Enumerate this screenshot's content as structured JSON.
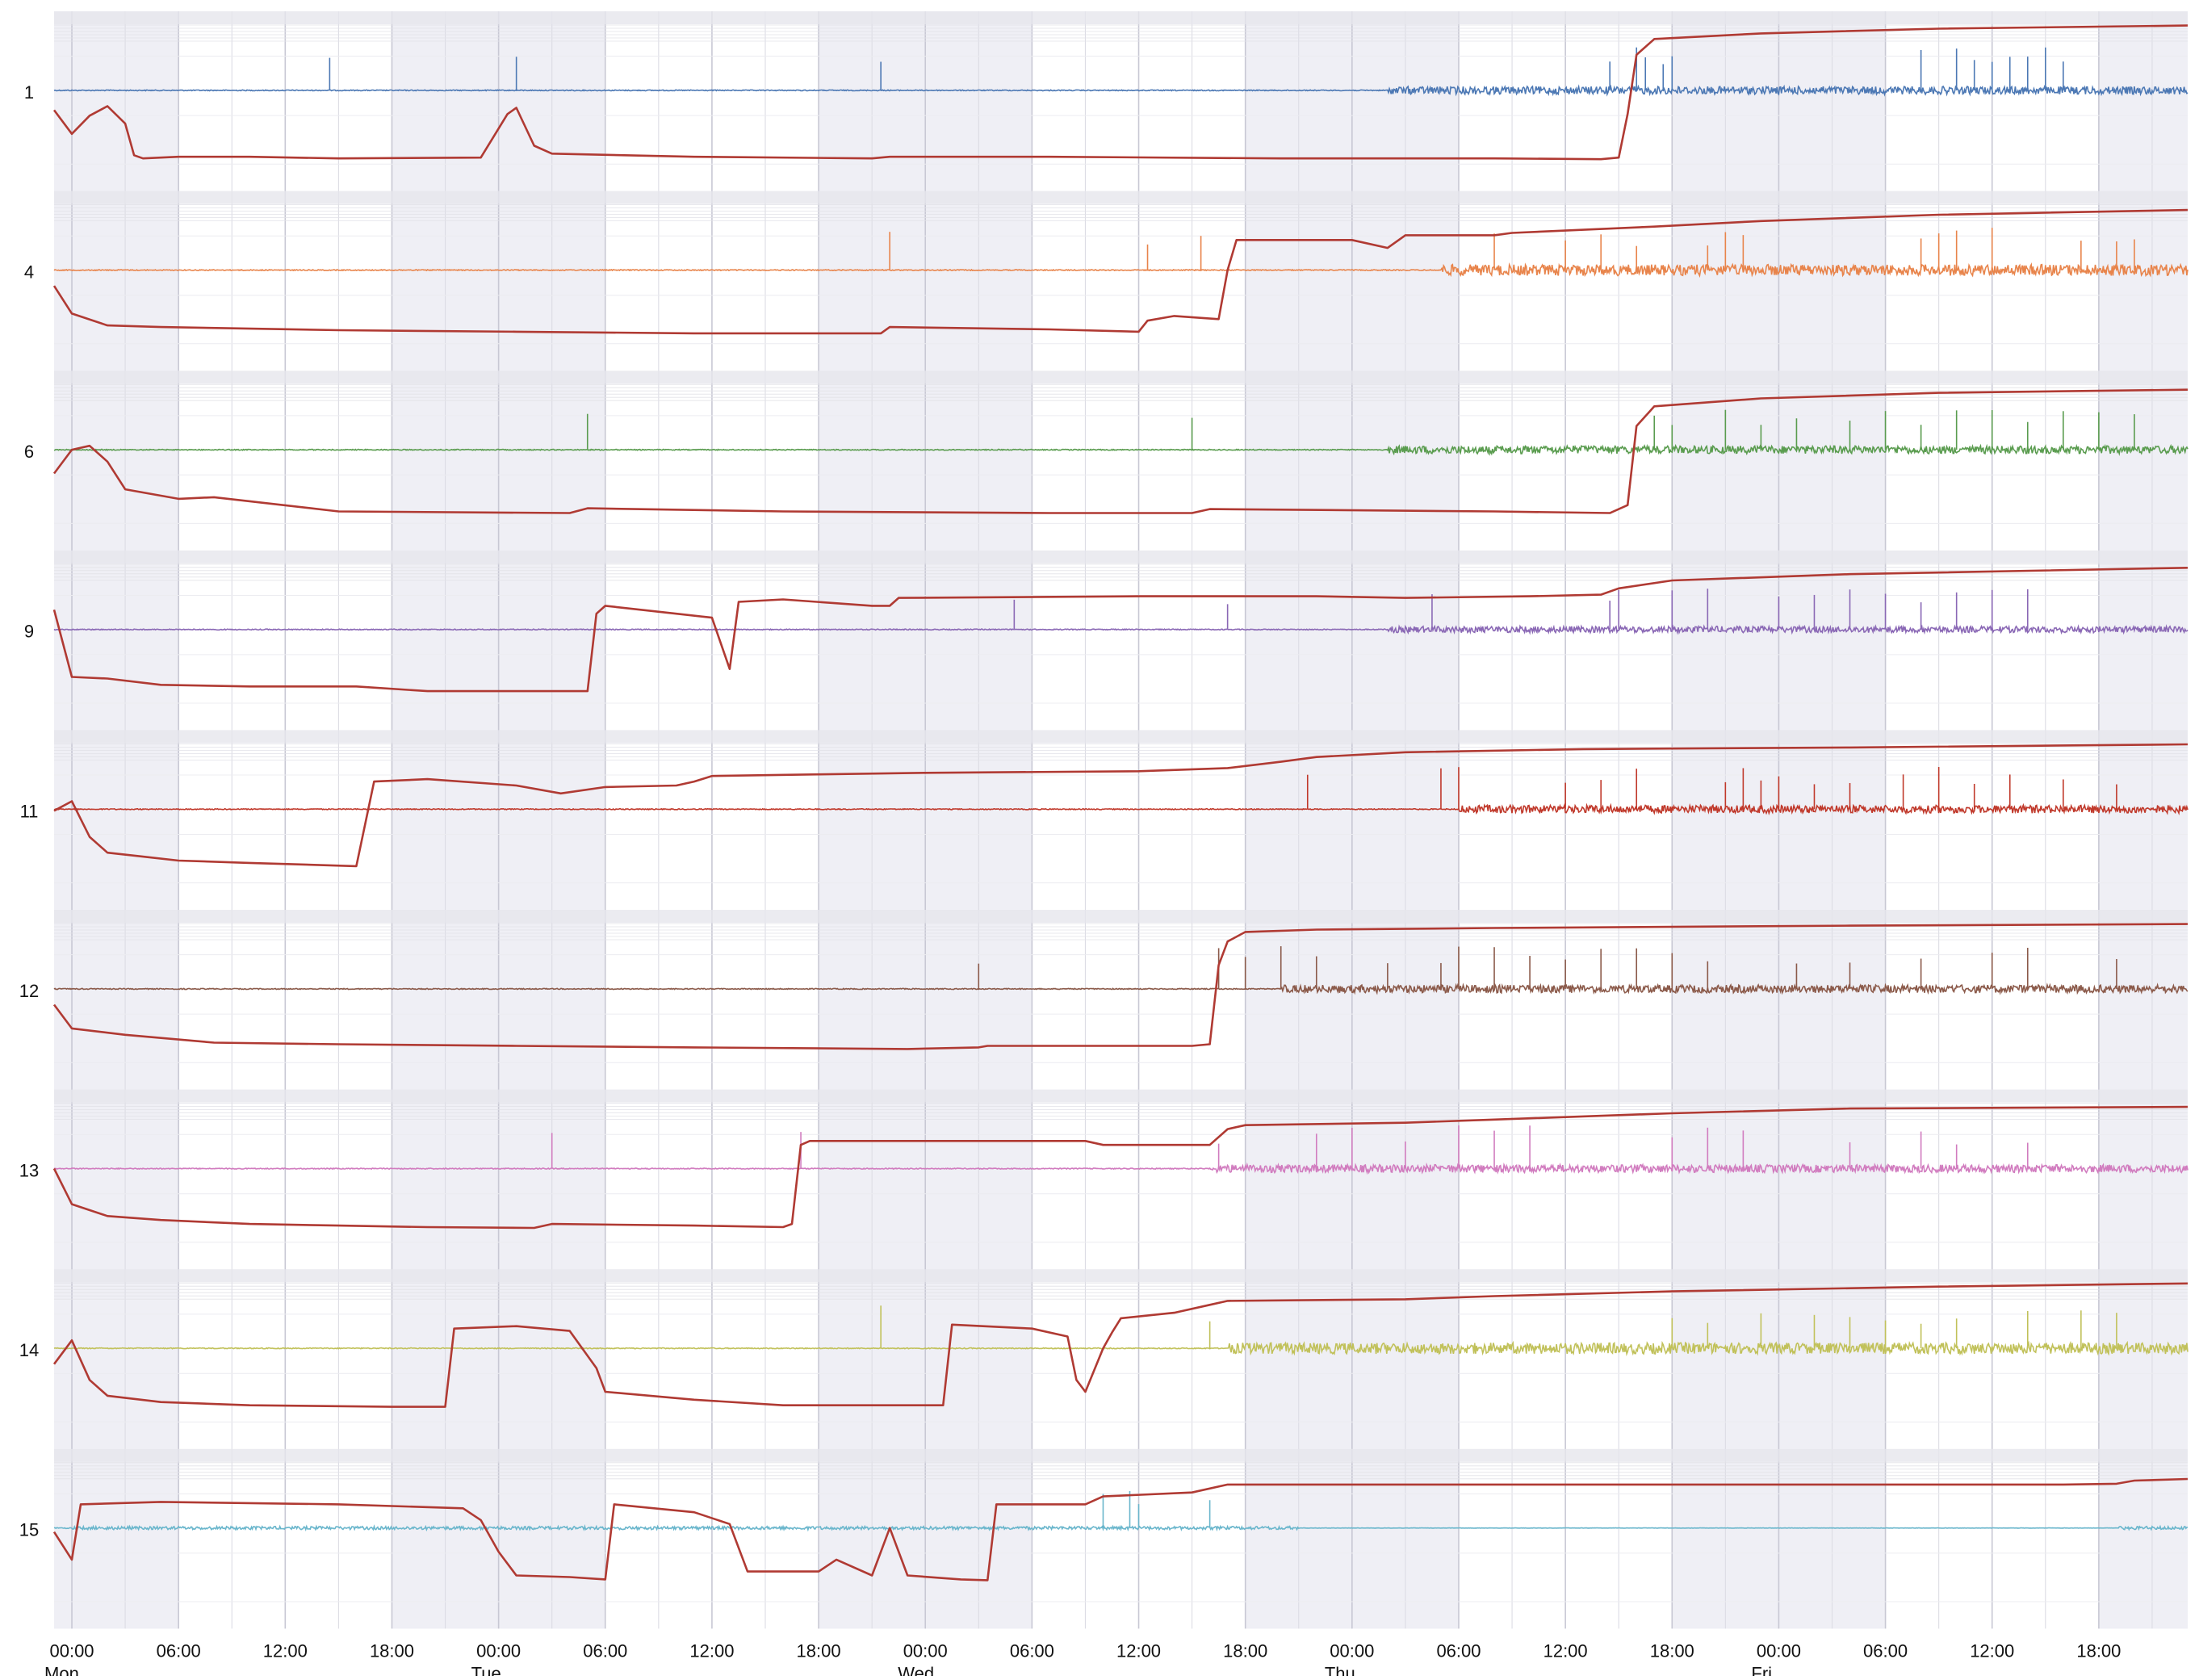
{
  "chart_data": {
    "type": "line",
    "title": "",
    "xlabel": "",
    "ylabel": "",
    "x_unit": "hours since Mon 00:00",
    "xlim": [
      -1,
      119
    ],
    "shaded_periods": [
      [
        -1,
        6
      ],
      [
        18,
        30
      ],
      [
        42,
        54
      ],
      [
        66,
        78
      ],
      [
        90,
        102
      ],
      [
        114,
        119
      ]
    ],
    "vertical_lines_every_hours": 3,
    "x_tick_labels": [
      {
        "x": 0,
        "label": "00:00"
      },
      {
        "x": 6,
        "label": "06:00"
      },
      {
        "x": 12,
        "label": "12:00"
      },
      {
        "x": 18,
        "label": "18:00"
      },
      {
        "x": 24,
        "label": "00:00"
      },
      {
        "x": 30,
        "label": "06:00"
      },
      {
        "x": 36,
        "label": "12:00"
      },
      {
        "x": 42,
        "label": "18:00"
      },
      {
        "x": 48,
        "label": "00:00"
      },
      {
        "x": 54,
        "label": "06:00"
      },
      {
        "x": 60,
        "label": "12:00"
      },
      {
        "x": 66,
        "label": "18:00"
      },
      {
        "x": 72,
        "label": "00:00"
      },
      {
        "x": 78,
        "label": "06:00"
      },
      {
        "x": 84,
        "label": "12:00"
      },
      {
        "x": 90,
        "label": "18:00"
      },
      {
        "x": 96,
        "label": "00:00"
      },
      {
        "x": 102,
        "label": "06:00"
      },
      {
        "x": 108,
        "label": "12:00"
      },
      {
        "x": 114,
        "label": "18:00"
      }
    ],
    "day_labels": [
      {
        "x": 0,
        "label": "Mon"
      },
      {
        "x": 24,
        "label": "Tue"
      },
      {
        "x": 48,
        "label": "Wed"
      },
      {
        "x": 72,
        "label": "Thu"
      },
      {
        "x": 96,
        "label": "Fri"
      }
    ],
    "cumulative_line_color": "#b03a33",
    "panels": [
      {
        "label": "1",
        "color": "#4c78b4",
        "cumulative": [
          [
            -1,
            0.25
          ],
          [
            0,
            0.55
          ],
          [
            1,
            0.32
          ],
          [
            2,
            0.2
          ],
          [
            3,
            0.42
          ],
          [
            3.5,
            0.82
          ],
          [
            4,
            0.86
          ],
          [
            5,
            0.85
          ],
          [
            6,
            0.84
          ],
          [
            10,
            0.84
          ],
          [
            15,
            0.86
          ],
          [
            23,
            0.85
          ],
          [
            24.5,
            0.3
          ],
          [
            25,
            0.22
          ],
          [
            26,
            0.7
          ],
          [
            27,
            0.8
          ],
          [
            35,
            0.84
          ],
          [
            45,
            0.86
          ],
          [
            46,
            0.84
          ],
          [
            55,
            0.84
          ],
          [
            68,
            0.86
          ],
          [
            80,
            0.86
          ],
          [
            86,
            0.87
          ],
          [
            87,
            0.85
          ],
          [
            87.5,
            0.3
          ],
          [
            88,
            -0.45
          ],
          [
            89,
            -0.65
          ],
          [
            95,
            -0.72
          ],
          [
            105,
            -0.78
          ],
          [
            119,
            -0.82
          ]
        ],
        "noise_start": 74,
        "noise_amp": 0.05,
        "spikes": [
          14.5,
          25,
          45.5,
          86.5,
          88,
          88.5,
          89.5,
          90,
          104,
          106,
          107,
          108,
          109,
          110,
          111,
          112
        ]
      },
      {
        "label": "4",
        "color": "#e8844b",
        "cumulative": [
          [
            -1,
            0.2
          ],
          [
            0,
            0.55
          ],
          [
            2,
            0.7
          ],
          [
            5,
            0.72
          ],
          [
            15,
            0.76
          ],
          [
            25,
            0.78
          ],
          [
            35,
            0.8
          ],
          [
            45.5,
            0.8
          ],
          [
            46,
            0.72
          ],
          [
            55,
            0.75
          ],
          [
            60,
            0.78
          ],
          [
            60.5,
            0.64
          ],
          [
            62,
            0.58
          ],
          [
            64.5,
            0.62
          ],
          [
            65,
            0.0
          ],
          [
            65.5,
            -0.38
          ],
          [
            72,
            -0.38
          ],
          [
            74,
            -0.28
          ],
          [
            75,
            -0.44
          ],
          [
            80,
            -0.44
          ],
          [
            81,
            -0.47
          ],
          [
            84,
            -0.5
          ],
          [
            89,
            -0.55
          ],
          [
            95,
            -0.62
          ],
          [
            105,
            -0.7
          ],
          [
            119,
            -0.76
          ]
        ],
        "noise_start": 77,
        "noise_amp": 0.07,
        "spikes": [
          46,
          60.5,
          63.5,
          80,
          84,
          86,
          88,
          92,
          93,
          94,
          104,
          105,
          106,
          108,
          113,
          115,
          116
        ]
      },
      {
        "label": "6",
        "color": "#5a9c4f",
        "cumulative": [
          [
            -1,
            0.3
          ],
          [
            0,
            0.0
          ],
          [
            1,
            -0.05
          ],
          [
            2,
            0.15
          ],
          [
            3,
            0.5
          ],
          [
            6,
            0.62
          ],
          [
            8,
            0.6
          ],
          [
            15,
            0.78
          ],
          [
            28,
            0.8
          ],
          [
            29,
            0.74
          ],
          [
            40,
            0.78
          ],
          [
            55,
            0.8
          ],
          [
            63,
            0.8
          ],
          [
            64,
            0.75
          ],
          [
            80,
            0.78
          ],
          [
            86.5,
            0.8
          ],
          [
            87.5,
            0.7
          ],
          [
            88,
            -0.3
          ],
          [
            89,
            -0.55
          ],
          [
            95,
            -0.65
          ],
          [
            105,
            -0.72
          ],
          [
            119,
            -0.76
          ]
        ],
        "noise_start": 74,
        "noise_amp": 0.05,
        "spikes": [
          29,
          63,
          89,
          90,
          93,
          95,
          97,
          100,
          102,
          104,
          106,
          108,
          110,
          112,
          114,
          116
        ]
      },
      {
        "label": "9",
        "color": "#8a68b5",
        "cumulative": [
          [
            -1,
            -0.25
          ],
          [
            0,
            0.6
          ],
          [
            2,
            0.62
          ],
          [
            5,
            0.7
          ],
          [
            10,
            0.72
          ],
          [
            16,
            0.72
          ],
          [
            20,
            0.78
          ],
          [
            28,
            0.78
          ],
          [
            29,
            0.78
          ],
          [
            29.5,
            -0.2
          ],
          [
            30,
            -0.3
          ],
          [
            34,
            -0.2
          ],
          [
            36,
            -0.15
          ],
          [
            37,
            0.5
          ],
          [
            37.5,
            -0.35
          ],
          [
            40,
            -0.38
          ],
          [
            45,
            -0.3
          ],
          [
            46,
            -0.3
          ],
          [
            46.5,
            -0.4
          ],
          [
            60,
            -0.42
          ],
          [
            70,
            -0.42
          ],
          [
            75,
            -0.4
          ],
          [
            82,
            -0.42
          ],
          [
            86,
            -0.44
          ],
          [
            87,
            -0.52
          ],
          [
            90,
            -0.62
          ],
          [
            100,
            -0.7
          ],
          [
            119,
            -0.78
          ]
        ],
        "noise_start": 74,
        "noise_amp": 0.04,
        "spikes": [
          53,
          65,
          76.5,
          86.5,
          87,
          90,
          92,
          96,
          98,
          100,
          102,
          104,
          106,
          108,
          110
        ]
      },
      {
        "label": "11",
        "color": "#c0392b",
        "cumulative": [
          [
            -1,
            0.02
          ],
          [
            0,
            -0.1
          ],
          [
            1,
            0.35
          ],
          [
            2,
            0.55
          ],
          [
            4,
            0.6
          ],
          [
            6,
            0.65
          ],
          [
            10,
            0.68
          ],
          [
            16,
            0.72
          ],
          [
            17,
            -0.35
          ],
          [
            20,
            -0.38
          ],
          [
            25,
            -0.3
          ],
          [
            27.5,
            -0.2
          ],
          [
            30,
            -0.28
          ],
          [
            34,
            -0.3
          ],
          [
            35,
            -0.35
          ],
          [
            36,
            -0.42
          ],
          [
            42,
            -0.44
          ],
          [
            48,
            -0.46
          ],
          [
            60,
            -0.48
          ],
          [
            65,
            -0.52
          ],
          [
            68,
            -0.6
          ],
          [
            70,
            -0.66
          ],
          [
            75,
            -0.72
          ],
          [
            85,
            -0.76
          ],
          [
            100,
            -0.78
          ],
          [
            119,
            -0.82
          ]
        ],
        "noise_start": 78,
        "noise_amp": 0.05,
        "spikes": [
          69.5,
          77,
          78,
          84,
          86,
          88,
          93,
          94,
          95,
          96,
          98,
          100,
          103,
          105,
          107,
          109,
          112,
          115
        ]
      },
      {
        "label": "12",
        "color": "#8b5a4a",
        "cumulative": [
          [
            -1,
            0.2
          ],
          [
            0,
            0.5
          ],
          [
            3,
            0.58
          ],
          [
            8,
            0.68
          ],
          [
            15,
            0.7
          ],
          [
            25,
            0.72
          ],
          [
            35,
            0.74
          ],
          [
            47,
            0.76
          ],
          [
            51,
            0.74
          ],
          [
            51.5,
            0.72
          ],
          [
            63,
            0.72
          ],
          [
            64,
            0.7
          ],
          [
            64.5,
            -0.3
          ],
          [
            65,
            -0.6
          ],
          [
            66,
            -0.72
          ],
          [
            70,
            -0.75
          ],
          [
            80,
            -0.77
          ],
          [
            100,
            -0.8
          ],
          [
            119,
            -0.82
          ]
        ],
        "noise_start": 68,
        "noise_amp": 0.05,
        "spikes": [
          51,
          64.5,
          66,
          68,
          70,
          74,
          77,
          78,
          80,
          82,
          84,
          86,
          88,
          90,
          92,
          97,
          100,
          104,
          108,
          110,
          115
        ]
      },
      {
        "label": "13",
        "color": "#d17cbf",
        "cumulative": [
          [
            -1,
            0.0
          ],
          [
            0,
            0.45
          ],
          [
            2,
            0.6
          ],
          [
            5,
            0.65
          ],
          [
            10,
            0.7
          ],
          [
            15,
            0.72
          ],
          [
            20,
            0.74
          ],
          [
            26,
            0.75
          ],
          [
            27,
            0.7
          ],
          [
            35,
            0.72
          ],
          [
            40,
            0.74
          ],
          [
            40.5,
            0.7
          ],
          [
            41,
            -0.3
          ],
          [
            41.5,
            -0.35
          ],
          [
            50,
            -0.35
          ],
          [
            57,
            -0.35
          ],
          [
            58,
            -0.3
          ],
          [
            64,
            -0.3
          ],
          [
            65,
            -0.5
          ],
          [
            66,
            -0.55
          ],
          [
            75,
            -0.58
          ],
          [
            80,
            -0.62
          ],
          [
            90,
            -0.7
          ],
          [
            100,
            -0.76
          ],
          [
            119,
            -0.78
          ]
        ],
        "noise_start": 64,
        "noise_amp": 0.05,
        "spikes": [
          27,
          41,
          64.5,
          70,
          72,
          75,
          78,
          80,
          82,
          90,
          92,
          94,
          100,
          104,
          106,
          110
        ]
      },
      {
        "label": "14",
        "color": "#c1c15a",
        "cumulative": [
          [
            -1,
            0.2
          ],
          [
            0,
            -0.1
          ],
          [
            1,
            0.4
          ],
          [
            2,
            0.6
          ],
          [
            5,
            0.68
          ],
          [
            10,
            0.72
          ],
          [
            18,
            0.74
          ],
          [
            21,
            0.74
          ],
          [
            21.5,
            -0.25
          ],
          [
            25,
            -0.28
          ],
          [
            28,
            -0.22
          ],
          [
            29.5,
            0.25
          ],
          [
            30,
            0.55
          ],
          [
            35,
            0.65
          ],
          [
            40,
            0.72
          ],
          [
            45,
            0.72
          ],
          [
            49,
            0.72
          ],
          [
            49.5,
            -0.3
          ],
          [
            54,
            -0.25
          ],
          [
            56,
            -0.15
          ],
          [
            56.5,
            0.4
          ],
          [
            57,
            0.55
          ],
          [
            58,
            0.0
          ],
          [
            58.5,
            -0.2
          ],
          [
            59,
            -0.38
          ],
          [
            62,
            -0.45
          ],
          [
            64,
            -0.55
          ],
          [
            65,
            -0.6
          ],
          [
            75,
            -0.62
          ],
          [
            80,
            -0.66
          ],
          [
            90,
            -0.72
          ],
          [
            105,
            -0.78
          ],
          [
            119,
            -0.82
          ]
        ],
        "noise_start": 65,
        "noise_amp": 0.07,
        "spikes": [
          45.5,
          64,
          90,
          92,
          95,
          98,
          100,
          102,
          104,
          106,
          110,
          113,
          115
        ]
      },
      {
        "label": "15",
        "color": "#6ab6cc",
        "cumulative": [
          [
            -1,
            0.05
          ],
          [
            0,
            0.4
          ],
          [
            0.5,
            -0.3
          ],
          [
            5,
            -0.33
          ],
          [
            15,
            -0.3
          ],
          [
            22,
            -0.25
          ],
          [
            23,
            -0.1
          ],
          [
            24,
            0.3
          ],
          [
            25,
            0.6
          ],
          [
            28,
            0.62
          ],
          [
            30,
            0.65
          ],
          [
            30.5,
            -0.3
          ],
          [
            35,
            -0.2
          ],
          [
            37,
            -0.05
          ],
          [
            38,
            0.55
          ],
          [
            42,
            0.55
          ],
          [
            43,
            0.4
          ],
          [
            45,
            0.6
          ],
          [
            46,
            0.0
          ],
          [
            47,
            0.6
          ],
          [
            50,
            0.65
          ],
          [
            51.5,
            0.66
          ],
          [
            52,
            -0.3
          ],
          [
            57,
            -0.3
          ],
          [
            58,
            -0.4
          ],
          [
            63,
            -0.45
          ],
          [
            65,
            -0.55
          ],
          [
            80,
            -0.55
          ],
          [
            112,
            -0.55
          ],
          [
            115,
            -0.56
          ],
          [
            116,
            -0.6
          ],
          [
            119,
            -0.62
          ]
        ],
        "noise_start": 0,
        "noise_amp": 0.02,
        "quiet_range": [
          69,
          115
        ],
        "spikes": [
          58,
          59.5,
          60,
          64
        ]
      }
    ]
  }
}
